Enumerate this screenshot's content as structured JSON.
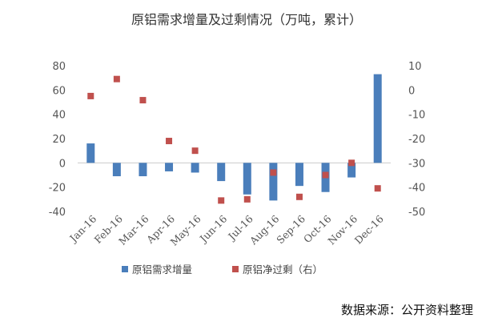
{
  "chart_data": {
    "type": "bar+scatter",
    "title": "原铝需求增量及过剩情况（万吨，累计）",
    "categories": [
      "Jan-16",
      "Feb-16",
      "Mar-16",
      "Apr-16",
      "May-16",
      "Jun-16",
      "Jul-16",
      "Aug-16",
      "Sep-16",
      "Oct-16",
      "Nov-16",
      "Dec-16"
    ],
    "series": [
      {
        "name": "原铝需求增量",
        "type": "bar",
        "axis": "left",
        "color": "#4a7ebb",
        "values": [
          16,
          -11,
          -11,
          -7,
          -8,
          -15,
          -26,
          -31,
          -19,
          -24,
          -12,
          73
        ]
      },
      {
        "name": "原铝净过剩（右）",
        "type": "scatter",
        "axis": "right",
        "color": "#c0504d",
        "values": [
          -2.5,
          4.5,
          -4.2,
          -21,
          -25,
          -45.5,
          -45,
          -34,
          -44,
          -35,
          -30,
          -40.5
        ]
      }
    ],
    "y_left": {
      "min": -40,
      "max": 80,
      "ticks": [
        80,
        60,
        40,
        20,
        0,
        -20,
        -40
      ]
    },
    "y_right": {
      "min": -50,
      "max": 10,
      "ticks": [
        10,
        0,
        -10,
        -20,
        -30,
        -40,
        -50
      ]
    },
    "legend": {
      "position": "bottom"
    },
    "grid": false
  },
  "source": "数据来源：公开资料整理"
}
